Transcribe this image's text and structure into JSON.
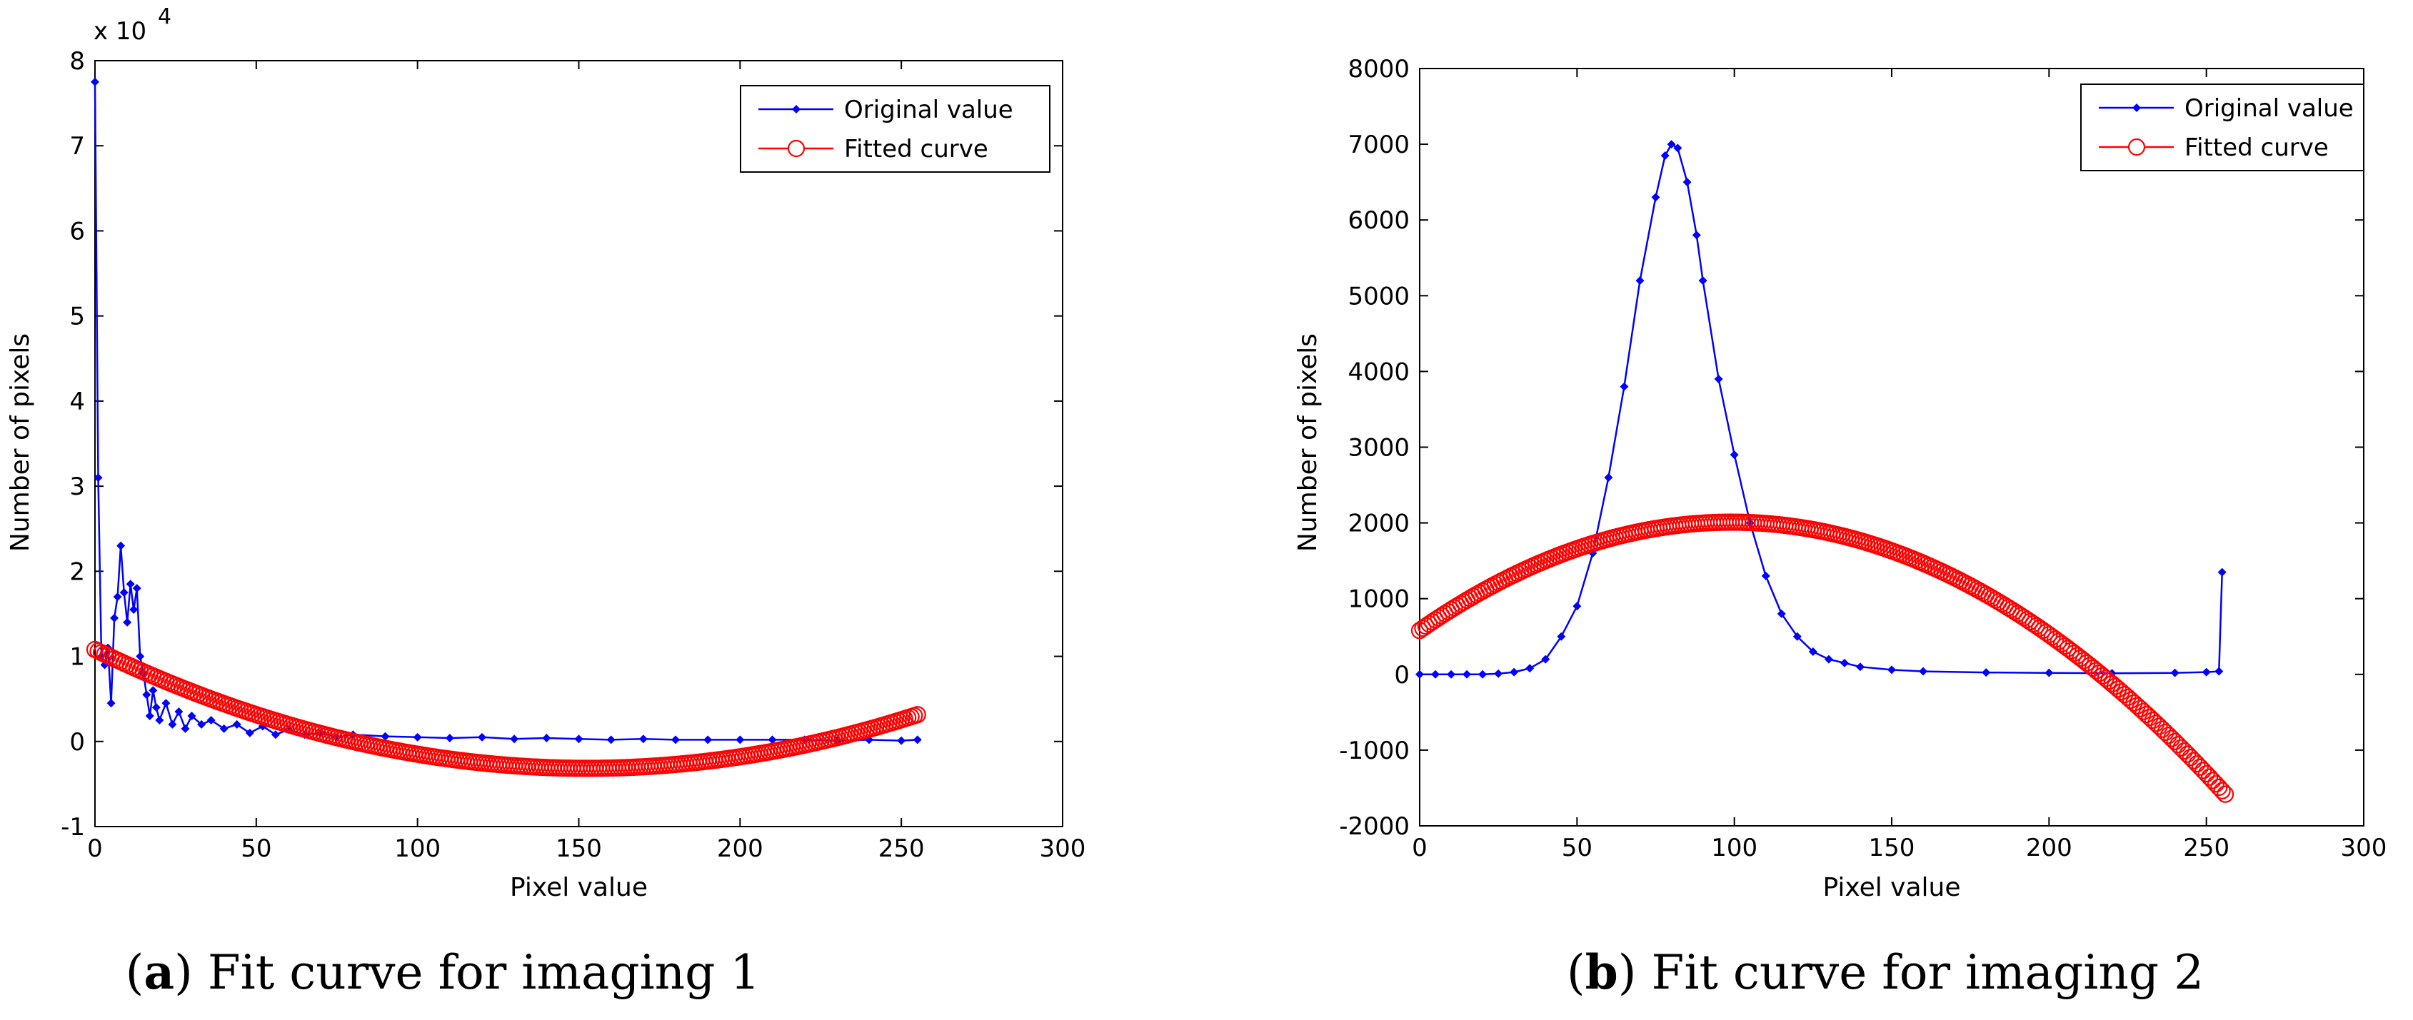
{
  "colors": {
    "original": "#0000ff",
    "fitted": "#ff0000",
    "axis": "#000000"
  },
  "chart_data": [
    {
      "type": "line",
      "id": "a",
      "caption": {
        "letter": "a",
        "open": "(",
        "close": ")",
        "text": " Fit curve for imaging 1"
      },
      "xlabel": "Pixel value",
      "ylabel": "Number of pixels",
      "xlim": [
        0,
        300
      ],
      "ylim": [
        -1,
        8
      ],
      "y_multiplier": "x 10",
      "y_exponent": "4",
      "x_ticks": [
        "0",
        "50",
        "100",
        "150",
        "200",
        "250",
        "300"
      ],
      "y_ticks": [
        "-1",
        "0",
        "1",
        "2",
        "3",
        "4",
        "5",
        "6",
        "7",
        "8"
      ],
      "legend": {
        "position": "top-right",
        "entries": [
          "Original value",
          "Fitted curve"
        ]
      },
      "series": [
        {
          "name": "Original value",
          "style": "line-dot",
          "points": [
            [
              0,
              7.75
            ],
            [
              1,
              3.1
            ],
            [
              2,
              1.0
            ],
            [
              3,
              0.9
            ],
            [
              4,
              1.1
            ],
            [
              5,
              0.45
            ],
            [
              6,
              1.45
            ],
            [
              7,
              1.7
            ],
            [
              8,
              2.3
            ],
            [
              9,
              1.75
            ],
            [
              10,
              1.4
            ],
            [
              11,
              1.85
            ],
            [
              12,
              1.55
            ],
            [
              13,
              1.8
            ],
            [
              14,
              1.0
            ],
            [
              15,
              0.8
            ],
            [
              16,
              0.55
            ],
            [
              17,
              0.3
            ],
            [
              18,
              0.6
            ],
            [
              19,
              0.4
            ],
            [
              20,
              0.25
            ],
            [
              22,
              0.45
            ],
            [
              24,
              0.2
            ],
            [
              26,
              0.35
            ],
            [
              28,
              0.15
            ],
            [
              30,
              0.3
            ],
            [
              33,
              0.2
            ],
            [
              36,
              0.25
            ],
            [
              40,
              0.15
            ],
            [
              44,
              0.2
            ],
            [
              48,
              0.1
            ],
            [
              52,
              0.18
            ],
            [
              56,
              0.08
            ],
            [
              60,
              0.14
            ],
            [
              65,
              0.08
            ],
            [
              70,
              0.1
            ],
            [
              75,
              0.05
            ],
            [
              80,
              0.08
            ],
            [
              90,
              0.06
            ],
            [
              100,
              0.05
            ],
            [
              110,
              0.04
            ],
            [
              120,
              0.05
            ],
            [
              130,
              0.03
            ],
            [
              140,
              0.04
            ],
            [
              150,
              0.03
            ],
            [
              160,
              0.02
            ],
            [
              170,
              0.03
            ],
            [
              180,
              0.02
            ],
            [
              190,
              0.02
            ],
            [
              200,
              0.02
            ],
            [
              210,
              0.02
            ],
            [
              220,
              0.02
            ],
            [
              230,
              0.01
            ],
            [
              240,
              0.02
            ],
            [
              250,
              0.01
            ],
            [
              255,
              0.02
            ]
          ]
        },
        {
          "name": "Fitted curve",
          "style": "circles",
          "fit": {
            "kind": "quadratic",
            "a": 6e-05,
            "b": -0.0183,
            "c": 1.08,
            "x0": 0,
            "x1": 255,
            "step": 1
          }
        }
      ]
    },
    {
      "type": "line",
      "id": "b",
      "caption": {
        "letter": "b",
        "open": "(",
        "close": ")",
        "text": " Fit curve for imaging 2"
      },
      "xlabel": "Pixel value",
      "ylabel": "Number of pixels",
      "xlim": [
        0,
        300
      ],
      "ylim": [
        -2000,
        8000
      ],
      "x_ticks": [
        "0",
        "50",
        "100",
        "150",
        "200",
        "250",
        "300"
      ],
      "y_ticks": [
        "-2000",
        "-1000",
        "0",
        "1000",
        "2000",
        "3000",
        "4000",
        "5000",
        "6000",
        "7000",
        "8000"
      ],
      "legend": {
        "position": "top-right",
        "entries": [
          "Original value",
          "Fitted curve"
        ]
      },
      "series": [
        {
          "name": "Original value",
          "style": "line-dot",
          "points": [
            [
              0,
              0
            ],
            [
              5,
              0
            ],
            [
              10,
              0
            ],
            [
              15,
              0
            ],
            [
              20,
              0
            ],
            [
              25,
              10
            ],
            [
              30,
              30
            ],
            [
              35,
              80
            ],
            [
              40,
              200
            ],
            [
              45,
              500
            ],
            [
              50,
              900
            ],
            [
              55,
              1600
            ],
            [
              60,
              2600
            ],
            [
              65,
              3800
            ],
            [
              70,
              5200
            ],
            [
              75,
              6300
            ],
            [
              78,
              6850
            ],
            [
              80,
              7000
            ],
            [
              82,
              6950
            ],
            [
              85,
              6500
            ],
            [
              88,
              5800
            ],
            [
              90,
              5200
            ],
            [
              95,
              3900
            ],
            [
              100,
              2900
            ],
            [
              105,
              2000
            ],
            [
              110,
              1300
            ],
            [
              115,
              800
            ],
            [
              120,
              500
            ],
            [
              125,
              300
            ],
            [
              130,
              200
            ],
            [
              135,
              150
            ],
            [
              140,
              100
            ],
            [
              150,
              60
            ],
            [
              160,
              40
            ],
            [
              180,
              25
            ],
            [
              200,
              20
            ],
            [
              220,
              15
            ],
            [
              240,
              20
            ],
            [
              250,
              30
            ],
            [
              254,
              40
            ],
            [
              255,
              1350
            ]
          ]
        },
        {
          "name": "Fitted curve",
          "style": "circles",
          "fit": {
            "kind": "quadratic",
            "a": -0.1458,
            "b": 28.88,
            "c": 580,
            "x0": 0,
            "x1": 256,
            "step": 1
          }
        }
      ]
    }
  ]
}
